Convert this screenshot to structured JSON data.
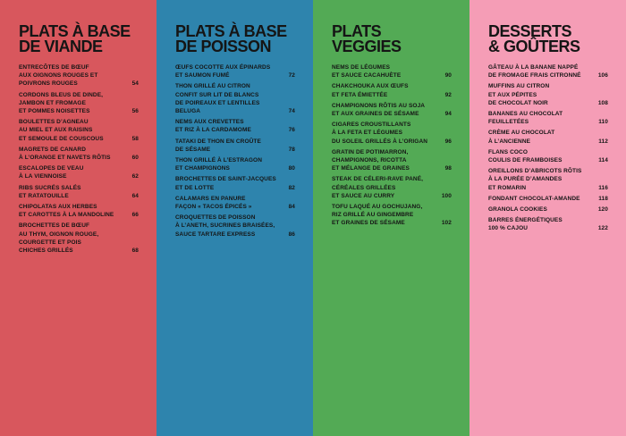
{
  "page_type": "menu-table-of-contents",
  "text_color": "#151515",
  "sections": [
    {
      "id": "viande",
      "color": "#d8575d",
      "title_lines": [
        "PLATS À BASE",
        "DE VIANDE"
      ],
      "items": [
        {
          "lines": [
            "ENTRECÔTES DE BŒUF",
            "AUX OIGNONS ROUGES ET",
            "POIVRONS ROUGES"
          ],
          "page": "54"
        },
        {
          "lines": [
            "CORDONS BLEUS DE DINDE,",
            "JAMBON ET FROMAGE",
            "ET POMMES NOISETTES"
          ],
          "page": "56"
        },
        {
          "lines": [
            "BOULETTES D’AGNEAU",
            "AU MIEL ET AUX RAISINS",
            "ET SEMOULE DE COUSCOUS"
          ],
          "page": "58"
        },
        {
          "lines": [
            "MAGRETS DE CANARD",
            "À L’ORANGE ET NAVETS RÔTIS"
          ],
          "page": "60"
        },
        {
          "lines": [
            "ESCALOPES DE VEAU",
            "À LA VIENNOISE"
          ],
          "page": "62"
        },
        {
          "lines": [
            "RIBS SUCRÉS SALÉS",
            "ET RATATOUILLE"
          ],
          "page": "64"
        },
        {
          "lines": [
            "CHIPOLATAS AUX HERBES",
            "ET CAROTTES À LA MANDOLINE"
          ],
          "page": "66"
        },
        {
          "lines": [
            "BROCHETTES DE BŒUF",
            "AU THYM, OIGNON ROUGE,",
            "COURGETTE ET POIS",
            "CHICHES GRILLÉS"
          ],
          "page": "68"
        }
      ]
    },
    {
      "id": "poisson",
      "color": "#2e84ad",
      "title_lines": [
        "PLATS À BASE",
        "DE POISSON"
      ],
      "items": [
        {
          "lines": [
            "ŒUFS COCOTTE AUX ÉPINARDS",
            "ET SAUMON FUMÉ"
          ],
          "page": "72"
        },
        {
          "lines": [
            "THON GRILLÉ AU CITRON",
            "CONFIT SUR LIT DE BLANCS",
            "DE POIREAUX ET LENTILLES",
            "BELUGA"
          ],
          "page": "74"
        },
        {
          "lines": [
            "NEMS AUX CREVETTES",
            "ET RIZ À LA CARDAMOME"
          ],
          "page": "76"
        },
        {
          "lines": [
            "TATAKI DE THON EN CROÛTE",
            "DE SÉSAME"
          ],
          "page": "78"
        },
        {
          "lines": [
            "THON GRILLÉ À L’ESTRAGON",
            "ET CHAMPIGNONS"
          ],
          "page": "80"
        },
        {
          "lines": [
            "BROCHETTES DE SAINT-JACQUES",
            "ET DE LOTTE"
          ],
          "page": "82"
        },
        {
          "lines": [
            "CALAMARS EN PANURE",
            "FAÇON « TACOS ÉPICÉS »"
          ],
          "page": "84"
        },
        {
          "lines": [
            "CROQUETTES DE POISSON",
            "À L’ANETH, SUCRINES BRAISÉES,",
            "SAUCE TARTARE EXPRESS"
          ],
          "page": "86"
        }
      ]
    },
    {
      "id": "veggies",
      "color": "#53aa55",
      "title_lines": [
        "PLATS",
        "VEGGIES"
      ],
      "items": [
        {
          "lines": [
            "NEMS DE LÉGUMES",
            "ET SAUCE CACAHUÈTE"
          ],
          "page": "90"
        },
        {
          "lines": [
            "CHAKCHOUKA AUX ŒUFS",
            "ET FETA ÉMIETTÉE"
          ],
          "page": "92"
        },
        {
          "lines": [
            "CHAMPIGNONS RÔTIS AU SOJA",
            "ET AUX GRAINES DE SÉSAME"
          ],
          "page": "94"
        },
        {
          "lines": [
            "CIGARES CROUSTILLANTS",
            "À LA FETA ET LÉGUMES",
            "DU SOLEIL GRILLÉS À L’ORIGAN"
          ],
          "page": "96"
        },
        {
          "lines": [
            "GRATIN DE POTIMARRON,",
            "CHAMPIGNONS, RICOTTA",
            "ET MÉLANGE DE GRAINES"
          ],
          "page": "98"
        },
        {
          "lines": [
            "STEAK DE CÉLERI-RAVE PANÉ,",
            "CÉRÉALES GRILLÉES",
            "ET SAUCE AU CURRY"
          ],
          "page": "100"
        },
        {
          "lines": [
            "TOFU LAQUÉ AU GOCHUJANG,",
            "RIZ GRILLÉ AU GINGEMBRE",
            "ET GRAINES DE SÉSAME"
          ],
          "page": "102"
        }
      ]
    },
    {
      "id": "desserts",
      "color": "#f59db6",
      "title_lines": [
        "DESSERTS",
        "& GOÛTERS"
      ],
      "items": [
        {
          "lines": [
            "GÂTEAU À LA BANANE NAPPÉ",
            "DE FROMAGE FRAIS CITRONNÉ"
          ],
          "page": "106"
        },
        {
          "lines": [
            "MUFFINS AU CITRON",
            "ET AUX PÉPITES",
            "DE CHOCOLAT NOIR"
          ],
          "page": "108"
        },
        {
          "lines": [
            "BANANES AU CHOCOLAT",
            "FEUILLETÉES"
          ],
          "page": "110"
        },
        {
          "lines": [
            "CRÈME AU CHOCOLAT",
            "À L’ANCIENNE"
          ],
          "page": "112"
        },
        {
          "lines": [
            "FLANS COCO",
            "COULIS DE FRAMBOISES"
          ],
          "page": "114"
        },
        {
          "lines": [
            "OREILLONS D’ABRICOTS RÔTIS",
            "À LA PURÉE D’AMANDES",
            "ET ROMARIN"
          ],
          "page": "116"
        },
        {
          "lines": [
            "FONDANT CHOCOLAT-AMANDE"
          ],
          "page": "118"
        },
        {
          "lines": [
            "GRANOLA COOKIES"
          ],
          "page": "120"
        },
        {
          "lines": [
            "BARRES ÉNERGÉTIQUES",
            "100 % CAJOU"
          ],
          "page": "122"
        }
      ]
    }
  ]
}
